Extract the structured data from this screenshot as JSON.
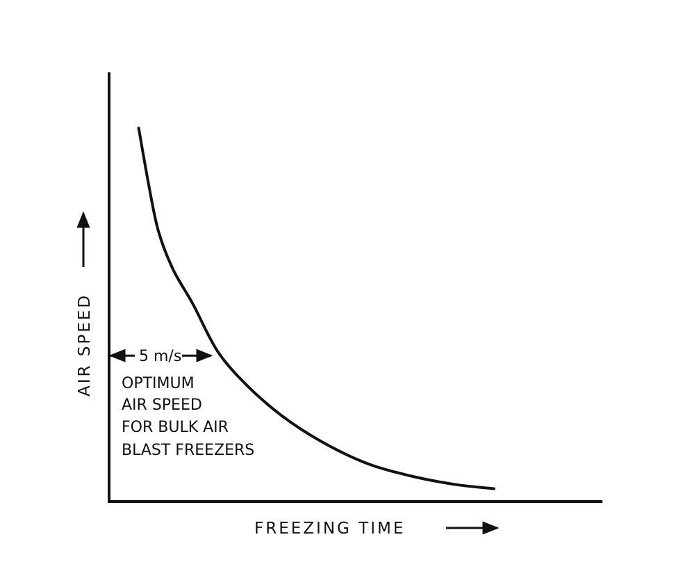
{
  "chart_data": {
    "type": "line",
    "title": "",
    "xlabel": "FREEZING TIME",
    "ylabel": "AIR SPEED",
    "grid": false,
    "axis_ticks": false,
    "series": [
      {
        "x": [
          0.06,
          0.08,
          0.1,
          0.13,
          0.17,
          0.22,
          0.28,
          0.35,
          0.43,
          0.52,
          0.61,
          0.7,
          0.78
        ],
        "y": [
          0.87,
          0.74,
          0.63,
          0.54,
          0.46,
          0.35,
          0.27,
          0.2,
          0.14,
          0.09,
          0.06,
          0.04,
          0.03
        ]
      }
    ],
    "xlim": [
      0,
      1
    ],
    "ylim": [
      0,
      1
    ],
    "annotation": {
      "marker_label": "5 m/s",
      "marker_value": 0.34,
      "text_lines": [
        "OPTIMUM",
        "AIR SPEED",
        "FOR BULK AIR",
        "BLAST FREEZERS"
      ]
    }
  }
}
